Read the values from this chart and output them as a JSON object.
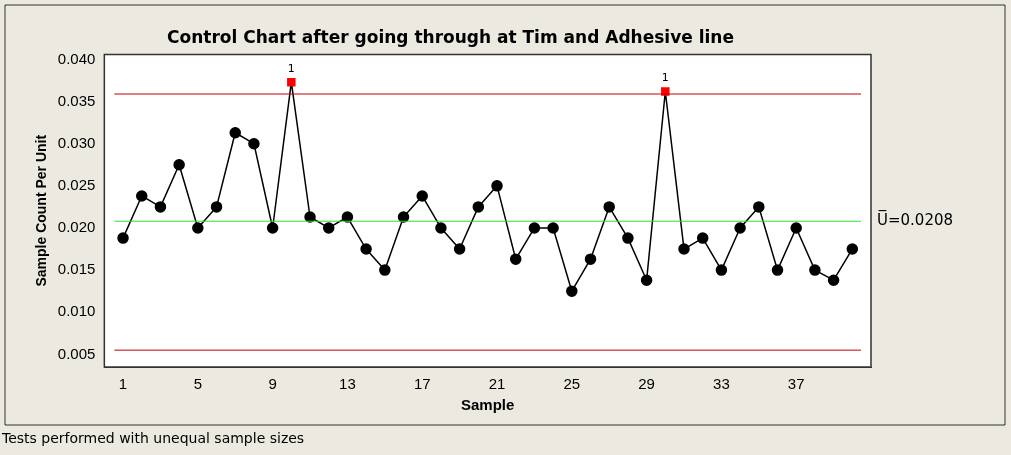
{
  "chart_data": {
    "type": "line",
    "title": "Control Chart after going through at Tim and Adhesive line",
    "xlabel": "Sample",
    "ylabel": "Sample Count Per Unit",
    "x": [
      1,
      2,
      3,
      4,
      5,
      6,
      7,
      8,
      9,
      10,
      11,
      12,
      13,
      14,
      15,
      16,
      17,
      18,
      19,
      20,
      21,
      22,
      23,
      24,
      25,
      26,
      27,
      28,
      29,
      30,
      31,
      32,
      33,
      34,
      35,
      36,
      37,
      38,
      39,
      40
    ],
    "series": [
      {
        "color": "#000000",
        "marker": "circle",
        "values": [
          0.0188,
          0.0238,
          0.0225,
          0.0275,
          0.02,
          0.0225,
          0.0313,
          0.03,
          0.02,
          0.0373,
          0.0213,
          0.02,
          0.0213,
          0.0175,
          0.015,
          0.0213,
          0.0238,
          0.02,
          0.0175,
          0.0225,
          0.025,
          0.0163,
          0.02,
          0.02,
          0.0125,
          0.0163,
          0.0225,
          0.0188,
          0.0138,
          0.0362,
          0.0175,
          0.0188,
          0.015,
          0.02,
          0.0225,
          0.015,
          0.02,
          0.015,
          0.0138,
          0.0175
        ]
      },
      {
        "type": "scatter",
        "color": "#ff0000",
        "marker": "square",
        "x": [
          10,
          30
        ],
        "values": [
          0.0373,
          0.0362
        ]
      }
    ],
    "xlim": [
      0,
      41
    ],
    "xticks": [
      1,
      5,
      9,
      13,
      17,
      21,
      25,
      29,
      33,
      37
    ],
    "ylim": [
      0.0035,
      0.0406
    ],
    "yticks": [
      0.005,
      {
        "value": 0.01,
        "label": "0.010"
      },
      0.015,
      {
        "value": 0.02,
        "label": "0.020"
      },
      0.025,
      {
        "value": 0.03,
        "label": "0.030"
      },
      0.035,
      {
        "value": 0.04,
        "label": "0.040"
      }
    ],
    "ref_lines": [
      {
        "axis": "y",
        "value": 0.0359,
        "color": "#c00000"
      },
      {
        "axis": "y",
        "value": 0.0208,
        "color": "#33dd33",
        "label": "U̅=0.0208"
      },
      {
        "axis": "y",
        "value": 0.0055,
        "color": "#c00000"
      }
    ],
    "annotations": [
      {
        "text": "1",
        "x": 10,
        "y": 0.0373
      },
      {
        "text": "1",
        "x": 30,
        "y": 0.0362
      },
      "Tests performed with unequal sample sizes"
    ],
    "grid": false,
    "legend": false
  }
}
